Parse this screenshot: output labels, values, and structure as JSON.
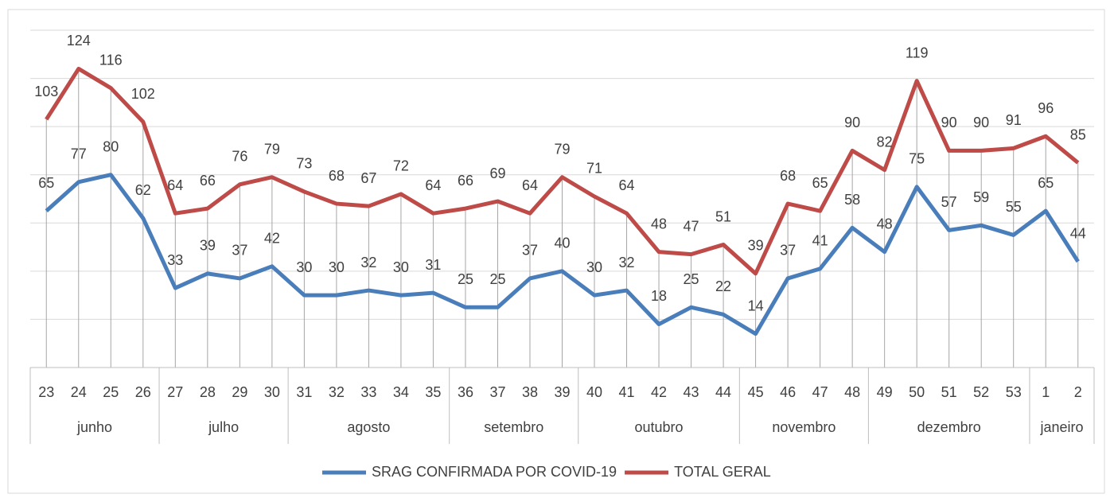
{
  "chart_data": {
    "type": "line",
    "groups": [
      {
        "label": "junho",
        "categories": [
          "23",
          "24",
          "25",
          "26"
        ]
      },
      {
        "label": "julho",
        "categories": [
          "27",
          "28",
          "29",
          "30"
        ]
      },
      {
        "label": "agosto",
        "categories": [
          "31",
          "32",
          "33",
          "34",
          "35"
        ]
      },
      {
        "label": "setembro",
        "categories": [
          "36",
          "37",
          "38",
          "39"
        ]
      },
      {
        "label": "outubro",
        "categories": [
          "40",
          "41",
          "42",
          "43",
          "44"
        ]
      },
      {
        "label": "novembro",
        "categories": [
          "45",
          "46",
          "47",
          "48"
        ]
      },
      {
        "label": "dezembro",
        "categories": [
          "49",
          "50",
          "51",
          "52",
          "53"
        ]
      },
      {
        "label": "janeiro",
        "categories": [
          "1",
          "2"
        ]
      }
    ],
    "series": [
      {
        "name": "SRAG CONFIRMADA POR COVID-19",
        "color": "#4a7ebb",
        "values": [
          65,
          77,
          80,
          62,
          33,
          39,
          37,
          42,
          30,
          30,
          32,
          30,
          31,
          25,
          25,
          37,
          40,
          30,
          32,
          18,
          25,
          22,
          14,
          37,
          41,
          58,
          48,
          75,
          57,
          59,
          55,
          65,
          44
        ]
      },
      {
        "name": "TOTAL GERAL",
        "color": "#be4b48",
        "values": [
          103,
          124,
          116,
          102,
          64,
          66,
          76,
          79,
          73,
          68,
          67,
          72,
          64,
          66,
          69,
          64,
          79,
          71,
          64,
          48,
          47,
          51,
          39,
          68,
          65,
          90,
          82,
          119,
          90,
          90,
          91,
          96,
          85
        ]
      }
    ],
    "ylim": [
      0,
      140
    ],
    "yticks": [
      0,
      20,
      40,
      60,
      80,
      100,
      120,
      140
    ],
    "grid": true,
    "legend": "bottom"
  }
}
